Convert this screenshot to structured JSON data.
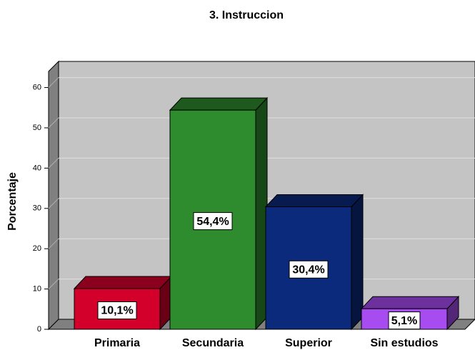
{
  "chart_data": {
    "type": "bar3d",
    "title": "3. Instruccion",
    "y_label": "Porcentaje",
    "categories": [
      "Primaria",
      "Secundaria",
      "Superior",
      "Sin estudios"
    ],
    "values": [
      10.1,
      54.4,
      30.4,
      5.1
    ],
    "value_labels": [
      "10,1%",
      "54,4%",
      "30,4%",
      "5,1%"
    ],
    "colors": [
      "#d4002c",
      "#2e8b2e",
      "#0c2a7c",
      "#a64cf0"
    ],
    "ylim": [
      0,
      64
    ],
    "yticks": [
      0,
      10,
      20,
      30,
      40,
      50,
      60
    ],
    "grid": true
  }
}
